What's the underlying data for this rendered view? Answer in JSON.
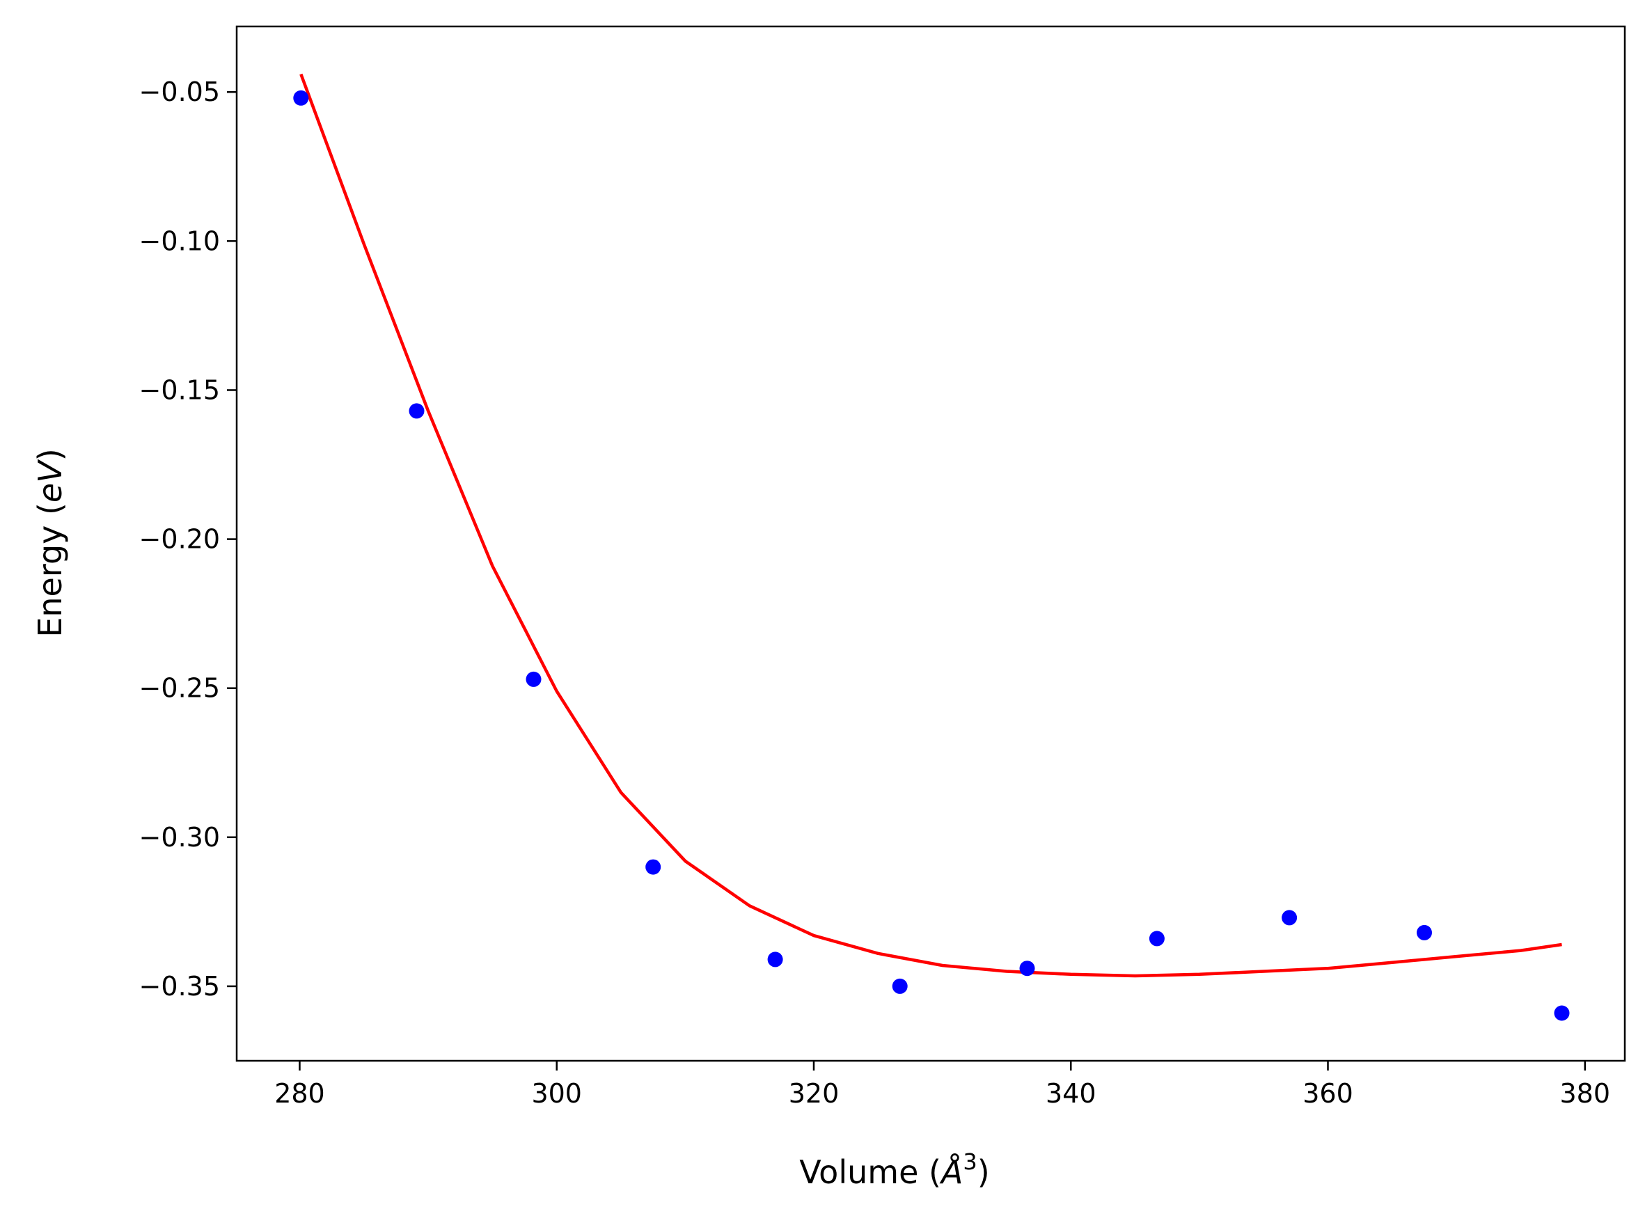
{
  "chart_data": {
    "type": "scatter",
    "xlabel": "Volume (Å³)",
    "xlabel_parts": {
      "prefix": "Volume (",
      "symbol": "Å",
      "exponent": "3",
      "suffix": ")"
    },
    "ylabel": "Energy (eV)",
    "ylabel_parts": {
      "prefix": "Energy (",
      "unit": "eV",
      "suffix": ")"
    },
    "xlim": [
      275.1,
      383.1
    ],
    "ylim": [
      -0.375,
      -0.028
    ],
    "x_ticks": [
      280,
      300,
      320,
      340,
      360,
      380
    ],
    "x_tick_labels": [
      "280",
      "300",
      "320",
      "340",
      "360",
      "380"
    ],
    "y_ticks": [
      -0.05,
      -0.1,
      -0.15,
      -0.2,
      -0.25,
      -0.3,
      -0.35
    ],
    "y_tick_labels": [
      "−0.05",
      "−0.10",
      "−0.15",
      "−0.20",
      "−0.25",
      "−0.30",
      "−0.35"
    ],
    "grid": false,
    "series": [
      {
        "kind": "points",
        "color": "#0000ff",
        "x": [
          280.1,
          289.1,
          298.2,
          307.5,
          317.0,
          326.7,
          336.6,
          346.7,
          357.0,
          367.5,
          378.2
        ],
        "y": [
          -0.052,
          -0.157,
          -0.247,
          -0.31,
          -0.341,
          -0.35,
          -0.344,
          -0.334,
          -0.327,
          -0.332,
          -0.359
        ]
      },
      {
        "kind": "fit-line",
        "color": "#ff0000",
        "x": [
          280.1,
          285,
          290,
          295,
          300,
          305,
          310,
          315,
          320,
          325,
          330,
          335,
          340,
          345,
          350,
          355,
          360,
          365,
          370,
          375,
          378.2
        ],
        "y": [
          -0.044,
          -0.101,
          -0.157,
          -0.209,
          -0.251,
          -0.285,
          -0.308,
          -0.323,
          -0.333,
          -0.339,
          -0.343,
          -0.345,
          -0.346,
          -0.3465,
          -0.346,
          -0.345,
          -0.344,
          -0.342,
          -0.34,
          -0.338,
          -0.336
        ]
      }
    ]
  }
}
